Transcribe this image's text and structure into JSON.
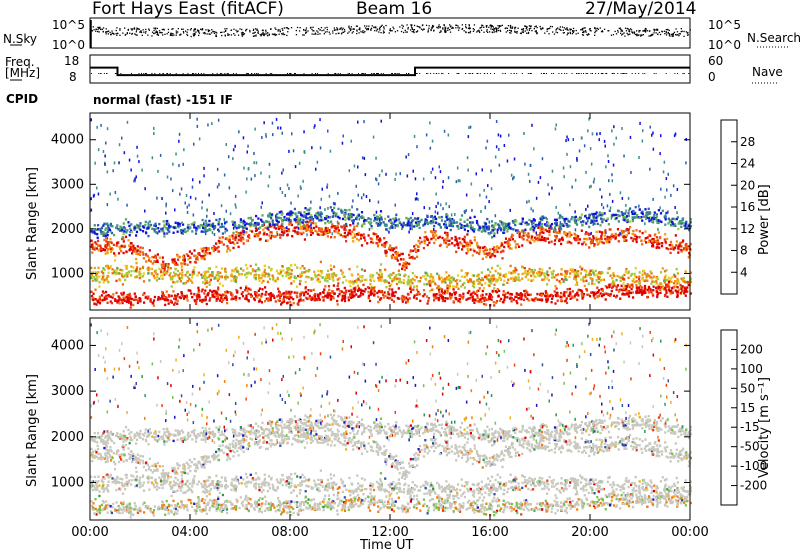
{
  "header": {
    "radar": "Fort Hays East (fitACF)",
    "beam": "Beam 16",
    "date": "27/May/2014"
  },
  "strip": {
    "nsky_label": "N.Sky",
    "nsky_ticks": [
      "10^5",
      "10^0"
    ],
    "nsearch_label": "N.Search",
    "nsearch_ticks": [
      "10^5",
      "10^0"
    ],
    "freq_label_1": "Freq.",
    "freq_label_2": "[MHz]",
    "freq_ticks": [
      "18",
      "8"
    ],
    "nave_ticks": [
      "60",
      "0"
    ],
    "nave_label": "Nave",
    "cpid_label": "CPID",
    "cpid_text": "normal (fast) -151 IF",
    "freq_steps": [
      {
        "t": 0,
        "f": 13.5
      },
      {
        "t": 1.1,
        "f": 10.8
      },
      {
        "t": 13.0,
        "f": 13.5
      },
      {
        "t": 24,
        "f": 13.5
      }
    ]
  },
  "colors": {
    "power_scale": [
      "#1010e0",
      "#2a5fb0",
      "#3a8f8a",
      "#5aaa5a",
      "#9ccc3c",
      "#e8d020",
      "#f0a010",
      "#f07010",
      "#e83818",
      "#e00000"
    ],
    "velocity_scale": [
      "#e00000",
      "#f04010",
      "#f08010",
      "#f0b020",
      "#c8c8be",
      "#c8c8be",
      "#78c050",
      "#2a9a4a",
      "#3050a0",
      "#1818c0"
    ]
  },
  "chart_data": [
    {
      "type": "heatmap",
      "name": "power",
      "xlabel": "",
      "ylabel": "Slant Range [km]",
      "xlim": [
        0,
        24
      ],
      "ylim": [
        180,
        4600
      ],
      "yticks": [
        "4000",
        "3000",
        "2000",
        "1000"
      ],
      "colorbar_label": "Power [dB]",
      "colorbar_ticks": [
        "28",
        "24",
        "20",
        "16",
        "12",
        "8",
        "4"
      ],
      "bands": [
        {
          "x": [
            0.0,
            1.5,
            3.0,
            4.5,
            6.0,
            8.0,
            10.0,
            11.5,
            12.5,
            13.5,
            15.0,
            16.0,
            17.0,
            18.5,
            20.0,
            21.5,
            23.0,
            24.0
          ],
          "y": [
            1650,
            1600,
            1200,
            1500,
            1850,
            2050,
            2000,
            1750,
            1250,
            1850,
            1700,
            1450,
            1800,
            1900,
            1800,
            1900,
            1700,
            1600
          ],
          "width": 180,
          "level": 0.85
        },
        {
          "x": [
            0.0,
            2.0,
            4.0,
            6.0,
            8.0,
            10.0,
            12.0,
            14.0,
            16.0,
            18.0,
            20.0,
            22.0,
            24.0
          ],
          "y": [
            1000,
            1050,
            950,
            1000,
            1050,
            950,
            900,
            800,
            950,
            1000,
            950,
            900,
            850
          ],
          "width": 220,
          "level": 0.6
        },
        {
          "x": [
            0.0,
            2.0,
            4.0,
            6.0,
            8.0,
            10.0,
            11.0,
            12.5,
            14.0,
            16.0,
            18.0,
            20.0,
            22.0,
            24.0
          ],
          "y": [
            500,
            450,
            500,
            550,
            500,
            550,
            600,
            500,
            550,
            500,
            500,
            600,
            650,
            650
          ],
          "width": 160,
          "level": 0.95
        },
        {
          "x": [
            0.0,
            3.0,
            6.0,
            8.0,
            10.0,
            12.0,
            14.0,
            16.0,
            18.0,
            20.0,
            22.0,
            24.0
          ],
          "y": [
            2000,
            2050,
            2100,
            2300,
            2350,
            2150,
            2200,
            2050,
            2150,
            2250,
            2350,
            2100
          ],
          "width": 160,
          "level": 0.2
        }
      ]
    },
    {
      "type": "heatmap",
      "name": "velocity",
      "xlabel": "Time UT",
      "ylabel": "Slant Range [km]",
      "xlim": [
        0,
        24
      ],
      "ylim": [
        180,
        4600
      ],
      "xticks": [
        "00:00",
        "04:00",
        "08:00",
        "12:00",
        "16:00",
        "20:00",
        "00:00"
      ],
      "yticks": [
        "4000",
        "3000",
        "2000",
        "1000"
      ],
      "colorbar_label": "Velocity [m s⁻¹]",
      "colorbar_ticks": [
        "200",
        "100",
        "50",
        "15",
        "-15",
        "-50",
        "-100",
        "-200"
      ]
    }
  ]
}
